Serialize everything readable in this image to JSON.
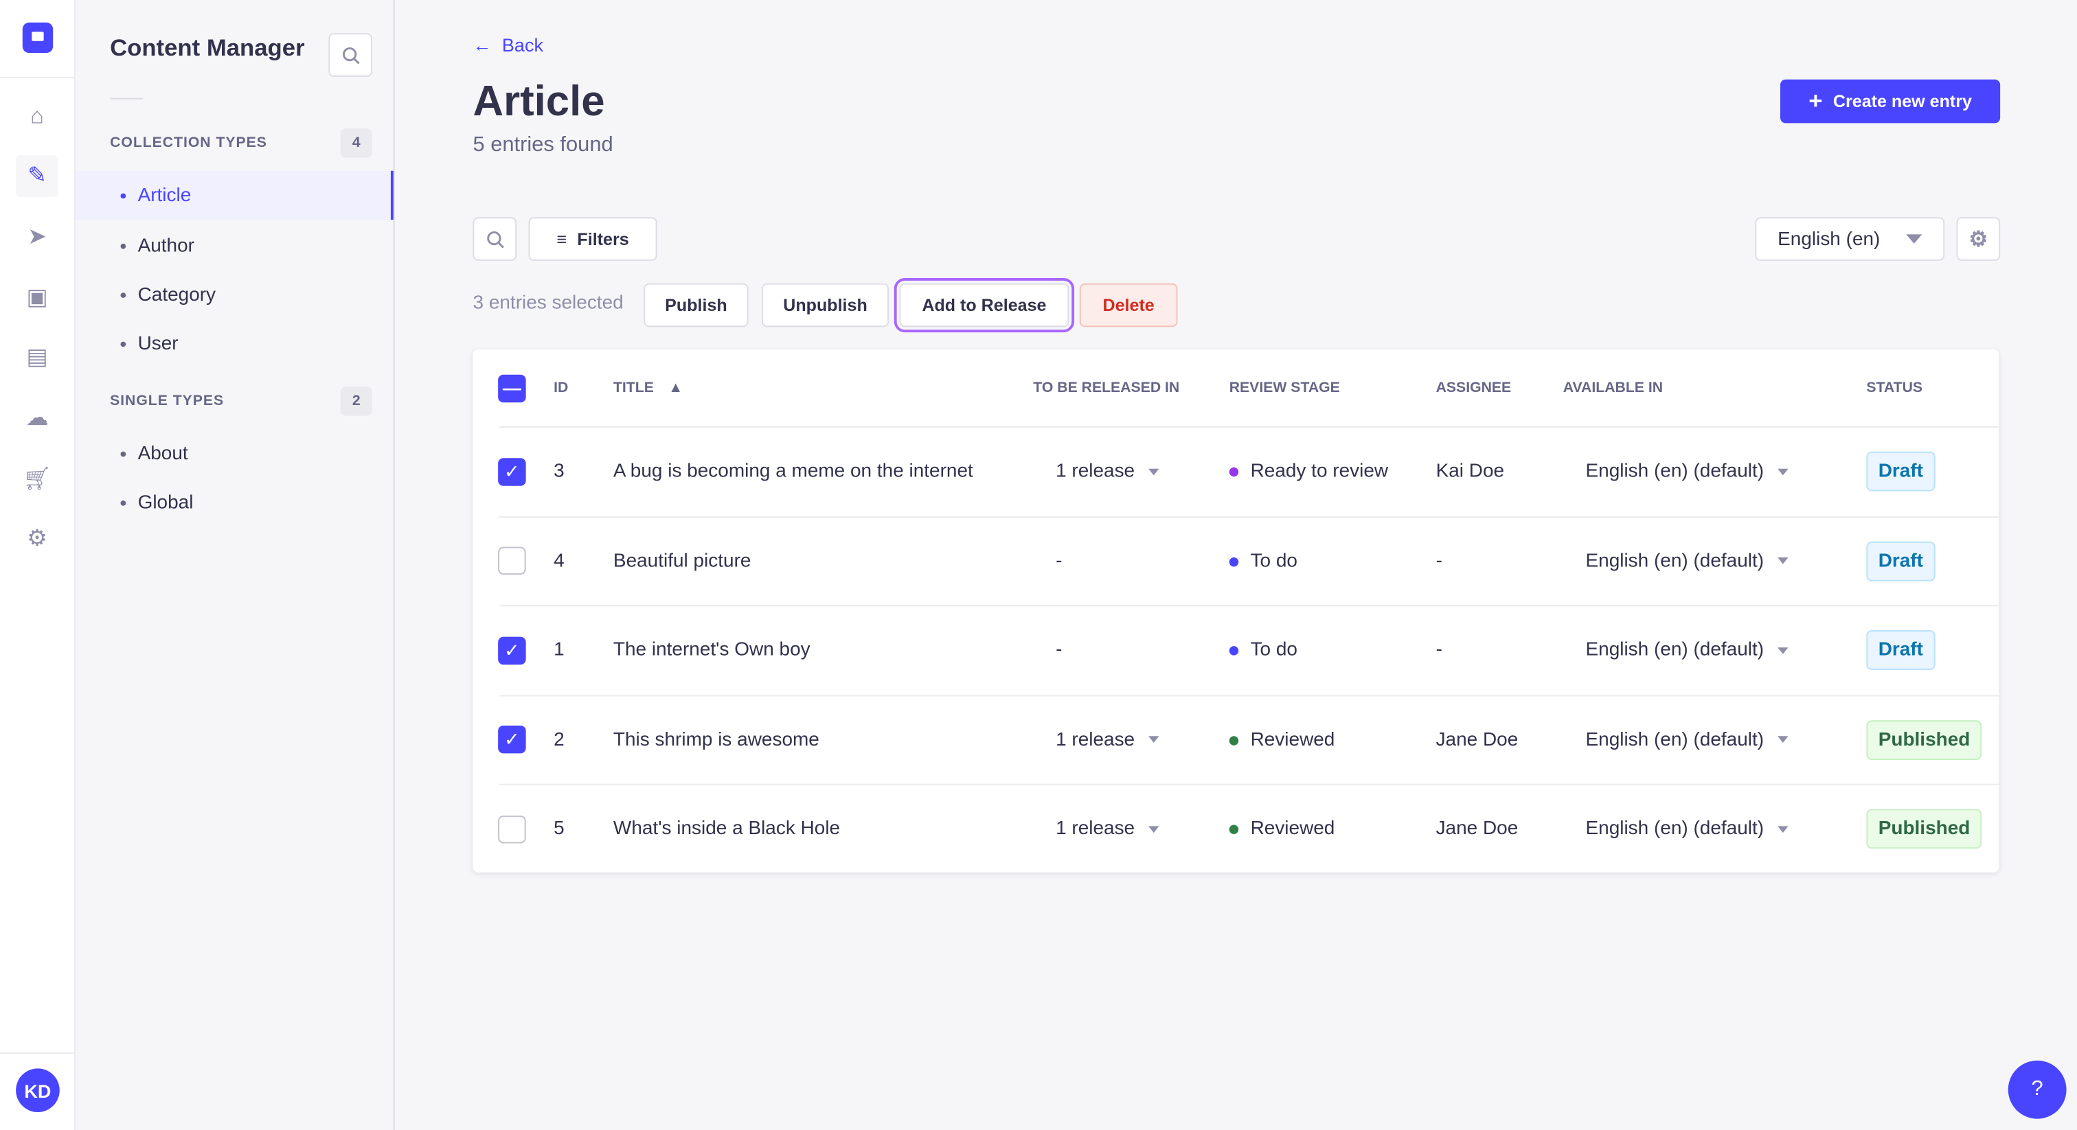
{
  "rail": {
    "icons": [
      "logo",
      "home-icon",
      "feather-icon",
      "send-icon",
      "media-icon",
      "layout-icon",
      "cloud-icon",
      "cart-icon",
      "gear-icon"
    ],
    "avatar": "KD"
  },
  "panel": {
    "title": "Content Manager",
    "collection_label": "COLLECTION TYPES",
    "collection_count": "4",
    "collection_items": [
      "Article",
      "Author",
      "Category",
      "User"
    ],
    "single_label": "SINGLE TYPES",
    "single_count": "2",
    "single_items": [
      "About",
      "Global"
    ]
  },
  "header": {
    "back": "Back",
    "title": "Article",
    "subtitle": "5 entries found",
    "create": "Create new entry"
  },
  "toolbar": {
    "filters": "Filters",
    "locale": "English (en)"
  },
  "bulk": {
    "selected": "3 entries selected",
    "publish": "Publish",
    "unpublish": "Unpublish",
    "add_release": "Add to Release",
    "delete": "Delete"
  },
  "table": {
    "headers": {
      "id": "ID",
      "title": "TITLE",
      "release": "TO BE RELEASED IN",
      "stage": "REVIEW STAGE",
      "assignee": "ASSIGNEE",
      "available": "AVAILABLE IN",
      "status": "STATUS"
    },
    "rows": [
      {
        "checked": true,
        "id": "3",
        "title": "A bug is becoming a meme on the internet",
        "release": "1 release",
        "stage": "Ready to review",
        "stage_color": "#9736e8",
        "assignee": "Kai Doe",
        "available": "English (en) (default)",
        "status": "Draft"
      },
      {
        "checked": false,
        "id": "4",
        "title": "Beautiful picture",
        "release": "-",
        "stage": "To do",
        "stage_color": "#4945ff",
        "assignee": "-",
        "available": "English (en) (default)",
        "status": "Draft"
      },
      {
        "checked": true,
        "id": "1",
        "title": "The internet's Own boy",
        "release": "-",
        "stage": "To do",
        "stage_color": "#4945ff",
        "assignee": "-",
        "available": "English (en) (default)",
        "status": "Draft"
      },
      {
        "checked": true,
        "id": "2",
        "title": "This shrimp is awesome",
        "release": "1 release",
        "stage": "Reviewed",
        "stage_color": "#328048",
        "assignee": "Jane Doe",
        "available": "English (en) (default)",
        "status": "Published"
      },
      {
        "checked": false,
        "id": "5",
        "title": "What's inside a Black Hole",
        "release": "1 release",
        "stage": "Reviewed",
        "stage_color": "#328048",
        "assignee": "Jane Doe",
        "available": "English (en) (default)",
        "status": "Published"
      }
    ]
  }
}
